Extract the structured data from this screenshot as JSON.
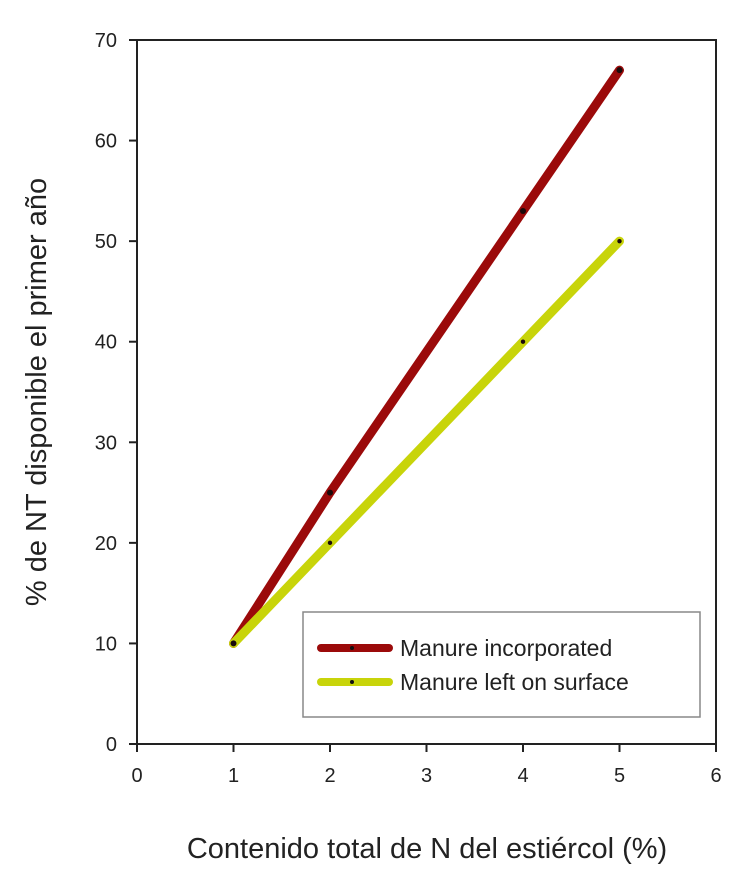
{
  "chart_data": {
    "type": "line",
    "title": "",
    "xlabel": "Contenido total de N del estiércol (%)",
    "ylabel": "% de NT disponible el primer año",
    "xlim": [
      0,
      6
    ],
    "ylim": [
      0,
      70
    ],
    "xticks": [
      "0",
      "1",
      "2",
      "3",
      "4",
      "5",
      "6"
    ],
    "yticks": [
      "0",
      "10",
      "20",
      "30",
      "40",
      "50",
      "60",
      "70"
    ],
    "grid": false,
    "legend_position": "bottom-right",
    "series": [
      {
        "name": "Manure incorporated",
        "color": "#9b0a0a",
        "x": [
          1,
          2,
          4,
          5
        ],
        "y": [
          10,
          25,
          53,
          67
        ]
      },
      {
        "name": "Manure left on surface",
        "color": "#c8d40a",
        "x": [
          1,
          2,
          4,
          5
        ],
        "y": [
          10,
          20,
          40,
          50
        ]
      }
    ]
  }
}
